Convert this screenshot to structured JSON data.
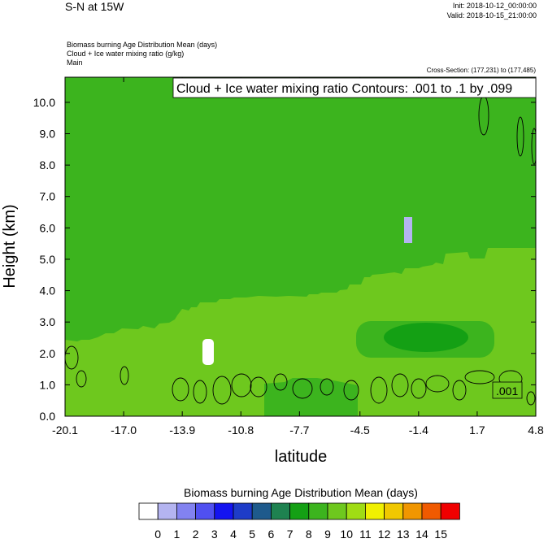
{
  "header": {
    "title": "S-N at 15W",
    "init": "Init: 2018-10-12_00:00:00",
    "valid": "Valid: 2018-10-15_21:00:00",
    "desc_lines": [
      "Biomass burning Age Distribution Mean   (days)",
      "Cloud + Ice water mixing ratio   (g/kg)",
      "Main"
    ],
    "cross_section": "Cross-Section: (177,231) to (177,485)"
  },
  "chart_data": {
    "type": "heatmap",
    "xlabel": "latitude",
    "ylabel": "Height (km)",
    "x_ticks": [
      "-20.1",
      "-17.0",
      "-13.9",
      "-10.8",
      "-7.7",
      "-4.5",
      "-1.4",
      "1.7",
      "4.8"
    ],
    "x_tick_values": [
      -20.1,
      -17.0,
      -13.9,
      -10.8,
      -7.7,
      -4.5,
      -1.4,
      1.7,
      4.8
    ],
    "xlim": [
      -20.1,
      4.8
    ],
    "y_ticks": [
      "0.0",
      "1.0",
      "2.0",
      "3.0",
      "4.0",
      "5.0",
      "6.0",
      "7.0",
      "8.0",
      "9.0",
      "10.0"
    ],
    "ylim": [
      0,
      10.8
    ],
    "contour_label": "Cloud + Ice water mixing ratio Contours: .001 to .1 by .099",
    "contour_value_label": ".001",
    "colorbar": {
      "title": "Biomass burning Age Distribution Mean  (days)",
      "labels": [
        "0",
        "1",
        "2",
        "3",
        "4",
        "5",
        "6",
        "7",
        "8",
        "9",
        "10",
        "11",
        "12",
        "13",
        "14",
        "15"
      ],
      "colors": [
        "#ffffff",
        "#b4b4f0",
        "#8282f0",
        "#5050f0",
        "#1414f0",
        "#1e3cc8",
        "#1e5a8c",
        "#1e8250",
        "#14a014",
        "#3cb41e",
        "#6ec81e",
        "#a0dc14",
        "#f0f000",
        "#f0c800",
        "#f09600",
        "#f05a00",
        "#f00000"
      ]
    },
    "regions": [
      {
        "name": "upper layer",
        "value": 9,
        "color": "#3cb41e"
      },
      {
        "name": "lower layer",
        "value": 10,
        "color": "#6ec81e"
      },
      {
        "name": "mid-level patch",
        "value": 9,
        "color": "#3cb41e"
      },
      {
        "name": "core patch",
        "value": 8,
        "color": "#14a014"
      }
    ]
  }
}
